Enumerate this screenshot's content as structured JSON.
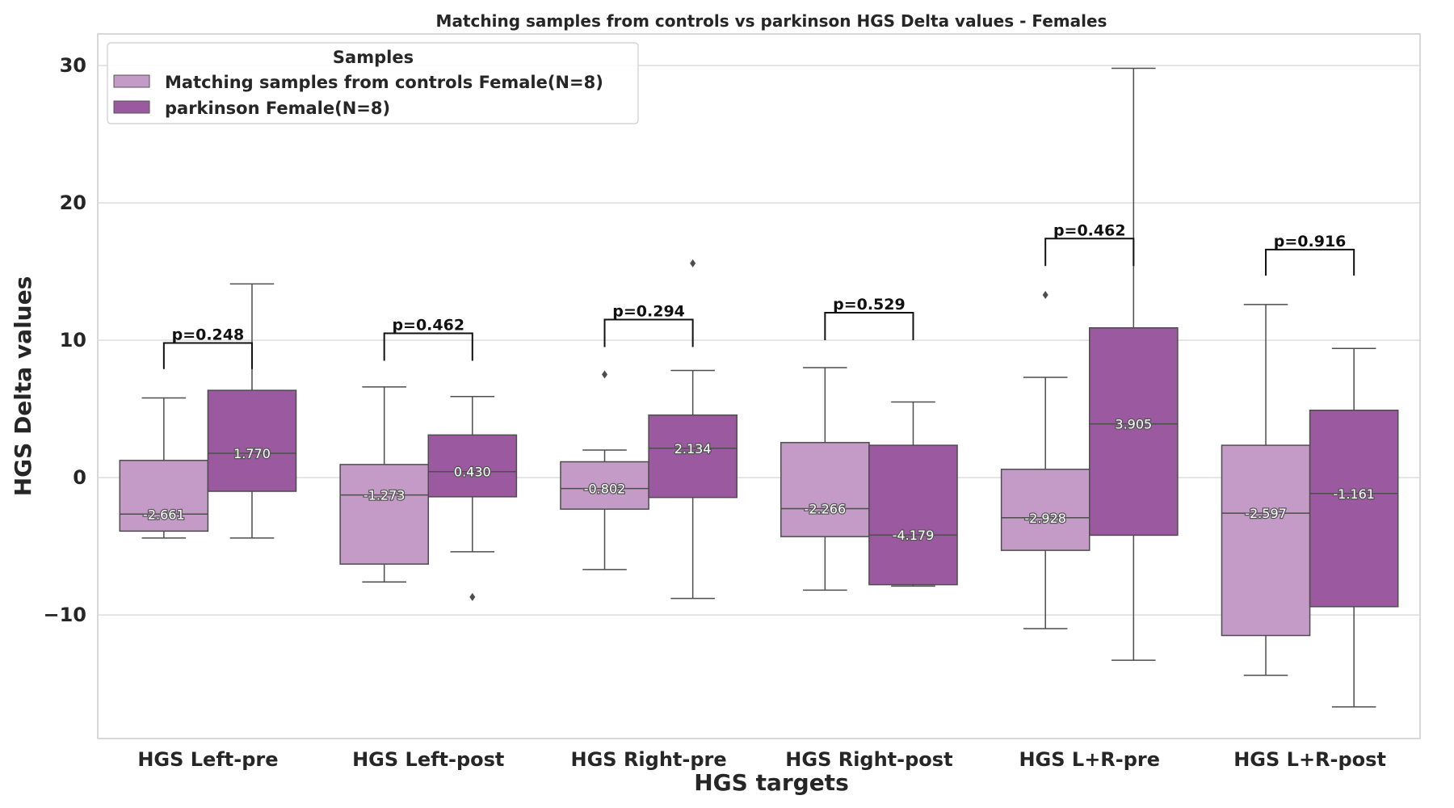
{
  "chart_data": {
    "type": "box",
    "title": "Matching samples from controls vs parkinson HGS Delta values - Females",
    "xlabel": "HGS targets",
    "ylabel": "HGS Delta values",
    "ylim": [
      -19,
      32.3
    ],
    "yticks": [
      {
        "value": -10,
        "label": "−10"
      },
      {
        "value": 0,
        "label": "0"
      },
      {
        "value": 10,
        "label": "10"
      },
      {
        "value": 20,
        "label": "20"
      },
      {
        "value": 30,
        "label": "30"
      }
    ],
    "grid": true,
    "categories": [
      "HGS Left-pre",
      "HGS Left-post",
      "HGS Right-pre",
      "HGS Right-post",
      "HGS L+R-pre",
      "HGS L+R-post"
    ],
    "legend": {
      "title": "Samples",
      "placement": "top-left",
      "entries": [
        {
          "label": "Matching samples from controls Female(N=8)",
          "color": "#c39bc6"
        },
        {
          "label": "parkinson Female(N=8)",
          "color": "#9b59a0"
        }
      ]
    },
    "series": [
      {
        "name": "Matching samples from controls Female(N=8)",
        "color": "#c39bc6",
        "boxes": [
          {
            "whisker_low": -4.4,
            "q1": -3.9,
            "median": -2.661,
            "q3": 1.25,
            "whisker_high": 5.8,
            "outliers": [],
            "median_label": "-2.661"
          },
          {
            "whisker_low": -7.6,
            "q1": -6.3,
            "median": -1.273,
            "q3": 0.95,
            "whisker_high": 6.6,
            "outliers": [],
            "median_label": "-1.273"
          },
          {
            "whisker_low": -6.7,
            "q1": -2.3,
            "median": -0.802,
            "q3": 1.15,
            "whisker_high": 2.0,
            "outliers": [
              7.5
            ],
            "median_label": "-0.802"
          },
          {
            "whisker_low": -8.2,
            "q1": -4.3,
            "median": -2.266,
            "q3": 2.55,
            "whisker_high": 8.0,
            "outliers": [],
            "median_label": "-2.266"
          },
          {
            "whisker_low": -11.0,
            "q1": -5.3,
            "median": -2.928,
            "q3": 0.6,
            "whisker_high": 7.3,
            "outliers": [
              13.3
            ],
            "median_label": "-2.928"
          },
          {
            "whisker_low": -14.4,
            "q1": -11.5,
            "median": -2.597,
            "q3": 2.35,
            "whisker_high": 12.6,
            "outliers": [],
            "median_label": "-2.597"
          }
        ]
      },
      {
        "name": "parkinson Female(N=8)",
        "color": "#9b59a0",
        "boxes": [
          {
            "whisker_low": -4.4,
            "q1": -1.0,
            "median": 1.77,
            "q3": 6.35,
            "whisker_high": 14.1,
            "outliers": [],
            "median_label": "1.770"
          },
          {
            "whisker_low": -5.4,
            "q1": -1.4,
            "median": 0.43,
            "q3": 3.1,
            "whisker_high": 5.9,
            "outliers": [
              -8.7
            ],
            "median_label": "0.430"
          },
          {
            "whisker_low": -8.8,
            "q1": -1.45,
            "median": 2.134,
            "q3": 4.55,
            "whisker_high": 7.8,
            "outliers": [
              15.6
            ],
            "median_label": "2.134"
          },
          {
            "whisker_low": -7.9,
            "q1": -7.8,
            "median": -4.179,
            "q3": 2.35,
            "whisker_high": 5.5,
            "outliers": [],
            "median_label": "-4.179"
          },
          {
            "whisker_low": -13.3,
            "q1": -4.2,
            "median": 3.905,
            "q3": 10.9,
            "whisker_high": 29.8,
            "outliers": [],
            "median_label": "3.905"
          },
          {
            "whisker_low": -16.7,
            "q1": -9.4,
            "median": -1.161,
            "q3": 4.9,
            "whisker_high": 9.4,
            "outliers": [],
            "median_label": "-1.161"
          }
        ]
      }
    ],
    "annotations": [
      {
        "category": "HGS Left-pre",
        "label": "p=0.248",
        "top": 9.8,
        "left_start": 7.9,
        "right_start": 7.9
      },
      {
        "category": "HGS Left-post",
        "label": "p=0.462",
        "top": 10.5,
        "left_start": 8.5,
        "right_start": 8.5
      },
      {
        "category": "HGS Right-pre",
        "label": "p=0.294",
        "top": 11.5,
        "left_start": 9.5,
        "right_start": 9.5
      },
      {
        "category": "HGS Right-post",
        "label": "p=0.529",
        "top": 12.0,
        "left_start": 10.0,
        "right_start": 10.0
      },
      {
        "category": "HGS L+R-pre",
        "label": "p=0.462",
        "top": 17.4,
        "left_start": 15.4,
        "right_start": 15.4
      },
      {
        "category": "HGS L+R-post",
        "label": "p=0.916",
        "top": 16.6,
        "left_start": 14.7,
        "right_start": 14.7
      }
    ]
  }
}
